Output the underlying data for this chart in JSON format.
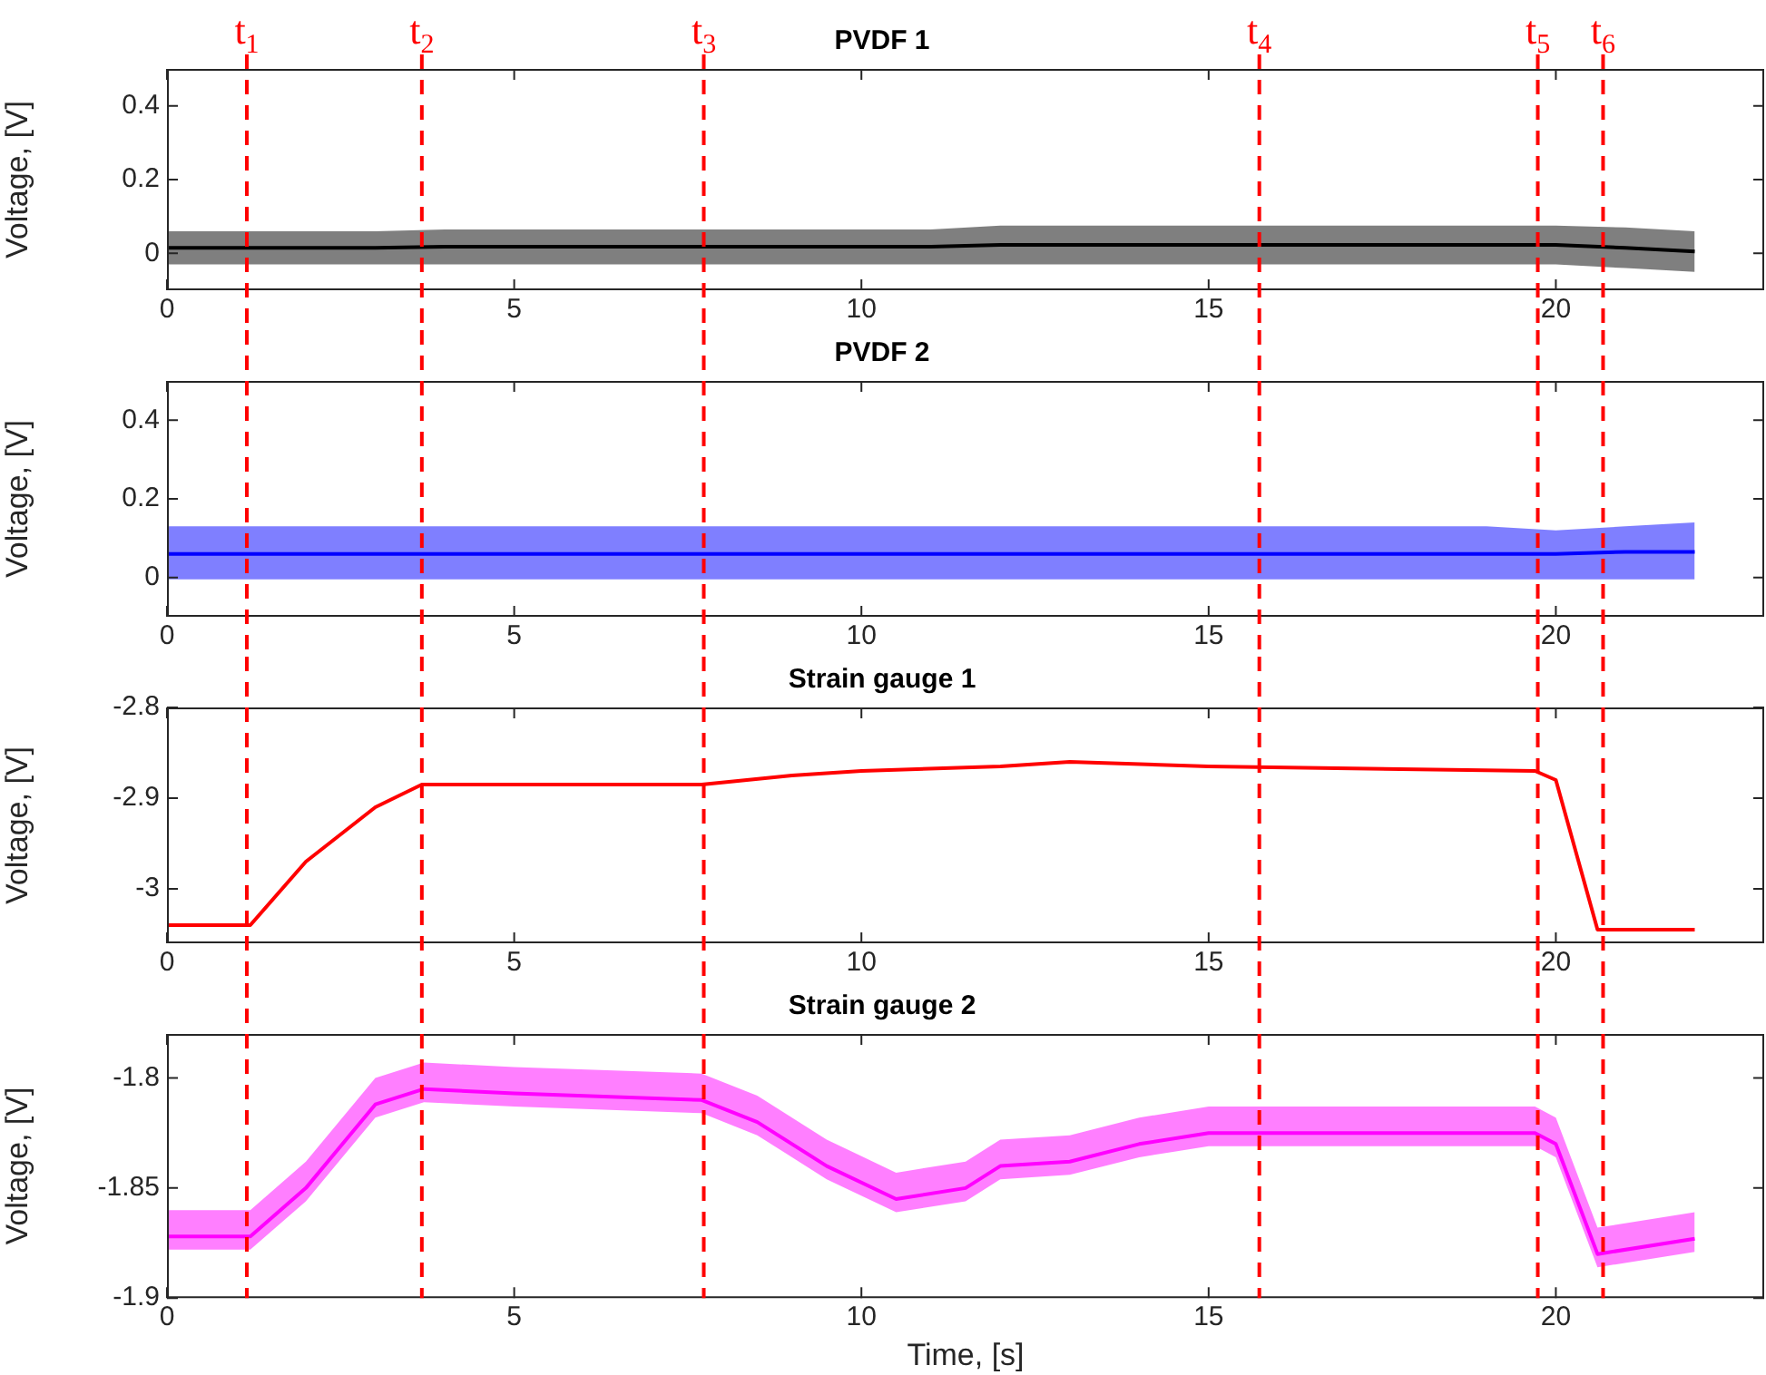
{
  "chart_data": [
    {
      "type": "line",
      "title": "PVDF 1",
      "ylabel": "Voltage, [V]",
      "xlim": [
        0,
        23
      ],
      "xticks": [
        0,
        5,
        10,
        15,
        20
      ],
      "ylim": [
        -0.1,
        0.5
      ],
      "yticks": [
        0,
        0.2,
        0.4
      ],
      "x": [
        0,
        1,
        2,
        3,
        4,
        5,
        6,
        7,
        8,
        9,
        10,
        11,
        12,
        13,
        14,
        15,
        16,
        17,
        18,
        19,
        20,
        21,
        22
      ],
      "series": [
        {
          "color": "#000000",
          "values": [
            0.015,
            0.015,
            0.015,
            0.015,
            0.018,
            0.018,
            0.018,
            0.018,
            0.018,
            0.018,
            0.018,
            0.018,
            0.023,
            0.023,
            0.023,
            0.023,
            0.023,
            0.023,
            0.023,
            0.023,
            0.023,
            0.015,
            0.005
          ],
          "lower": [
            -0.03,
            -0.03,
            -0.03,
            -0.03,
            -0.03,
            -0.03,
            -0.03,
            -0.03,
            -0.03,
            -0.03,
            -0.03,
            -0.03,
            -0.03,
            -0.03,
            -0.03,
            -0.03,
            -0.03,
            -0.03,
            -0.03,
            -0.03,
            -0.03,
            -0.04,
            -0.05
          ],
          "upper": [
            0.06,
            0.06,
            0.06,
            0.06,
            0.065,
            0.065,
            0.065,
            0.065,
            0.065,
            0.065,
            0.065,
            0.065,
            0.075,
            0.075,
            0.075,
            0.075,
            0.075,
            0.075,
            0.075,
            0.075,
            0.075,
            0.07,
            0.06
          ]
        }
      ],
      "ref_lines": [
        {
          "axis": "x",
          "value": 1.15,
          "label": "t$_{1}$",
          "color": "#ff0000",
          "line_style": "dashed"
        },
        {
          "axis": "x",
          "value": 3.67,
          "label": "t$_{2}$",
          "color": "#ff0000",
          "line_style": "dashed"
        },
        {
          "axis": "x",
          "value": 7.73,
          "label": "t$_{3}$",
          "color": "#ff0000",
          "line_style": "dashed"
        },
        {
          "axis": "x",
          "value": 15.73,
          "label": "t$_{4}$",
          "color": "#ff0000",
          "line_style": "dashed"
        },
        {
          "axis": "x",
          "value": 19.74,
          "label": "t$_{5}$",
          "color": "#ff0000",
          "line_style": "dashed"
        },
        {
          "axis": "x",
          "value": 20.68,
          "label": "t$_{6}$",
          "color": "#ff0000",
          "line_style": "dashed"
        }
      ]
    },
    {
      "type": "line",
      "title": "PVDF 2",
      "ylabel": "Voltage, [V]",
      "xlim": [
        0,
        23
      ],
      "xticks": [
        0,
        5,
        10,
        15,
        20
      ],
      "ylim": [
        -0.1,
        0.5
      ],
      "yticks": [
        0,
        0.2,
        0.4
      ],
      "x": [
        0,
        1,
        2,
        3,
        4,
        5,
        6,
        7,
        8,
        9,
        10,
        11,
        12,
        13,
        14,
        15,
        16,
        17,
        18,
        19,
        20,
        21,
        22
      ],
      "series": [
        {
          "color": "#0000ff",
          "values": [
            0.06,
            0.06,
            0.06,
            0.06,
            0.06,
            0.06,
            0.06,
            0.06,
            0.06,
            0.06,
            0.06,
            0.06,
            0.06,
            0.06,
            0.06,
            0.06,
            0.06,
            0.06,
            0.06,
            0.06,
            0.06,
            0.065,
            0.065
          ],
          "lower": [
            -0.005,
            -0.005,
            -0.005,
            -0.005,
            -0.005,
            -0.005,
            -0.005,
            -0.005,
            -0.005,
            -0.005,
            -0.005,
            -0.005,
            -0.005,
            -0.005,
            -0.005,
            -0.005,
            -0.005,
            -0.005,
            -0.005,
            -0.005,
            -0.005,
            -0.005,
            -0.005
          ],
          "upper": [
            0.13,
            0.13,
            0.13,
            0.13,
            0.13,
            0.13,
            0.13,
            0.13,
            0.13,
            0.13,
            0.13,
            0.13,
            0.13,
            0.13,
            0.13,
            0.13,
            0.13,
            0.13,
            0.13,
            0.13,
            0.12,
            0.13,
            0.14
          ]
        }
      ],
      "ref_lines": [
        {
          "axis": "x",
          "value": 1.15,
          "color": "#ff0000",
          "line_style": "dashed"
        },
        {
          "axis": "x",
          "value": 3.67,
          "color": "#ff0000",
          "line_style": "dashed"
        },
        {
          "axis": "x",
          "value": 7.73,
          "color": "#ff0000",
          "line_style": "dashed"
        },
        {
          "axis": "x",
          "value": 15.73,
          "color": "#ff0000",
          "line_style": "dashed"
        },
        {
          "axis": "x",
          "value": 19.74,
          "color": "#ff0000",
          "line_style": "dashed"
        },
        {
          "axis": "x",
          "value": 20.68,
          "color": "#ff0000",
          "line_style": "dashed"
        }
      ]
    },
    {
      "type": "line",
      "title": "Strain gauge 1",
      "ylabel": "Voltage, [V]",
      "xlim": [
        0,
        23
      ],
      "xticks": [
        0,
        5,
        10,
        15,
        20
      ],
      "ylim": [
        -3.06,
        -2.8
      ],
      "yticks": [
        -3,
        -2.9,
        -2.8
      ],
      "x": [
        0,
        1.2,
        2,
        3,
        3.67,
        5,
        7.7,
        9,
        10,
        12,
        13,
        15,
        19.7,
        20,
        20.6,
        22
      ],
      "series": [
        {
          "color": "#ff0000",
          "values": [
            -3.04,
            -3.04,
            -2.97,
            -2.91,
            -2.885,
            -2.885,
            -2.885,
            -2.875,
            -2.87,
            -2.865,
            -2.86,
            -2.865,
            -2.87,
            -2.88,
            -3.045,
            -3.045
          ]
        }
      ],
      "ref_lines": [
        {
          "axis": "x",
          "value": 1.15,
          "color": "#ff0000",
          "line_style": "dashed"
        },
        {
          "axis": "x",
          "value": 3.67,
          "color": "#ff0000",
          "line_style": "dashed"
        },
        {
          "axis": "x",
          "value": 7.73,
          "color": "#ff0000",
          "line_style": "dashed"
        },
        {
          "axis": "x",
          "value": 15.73,
          "color": "#ff0000",
          "line_style": "dashed"
        },
        {
          "axis": "x",
          "value": 19.74,
          "color": "#ff0000",
          "line_style": "dashed"
        },
        {
          "axis": "x",
          "value": 20.68,
          "color": "#ff0000",
          "line_style": "dashed"
        }
      ]
    },
    {
      "type": "line",
      "title": "Strain gauge 2",
      "xlabel": "Time, [s]",
      "ylabel": "Voltage, [V]",
      "xlim": [
        0,
        23
      ],
      "xticks": [
        0,
        5,
        10,
        15,
        20
      ],
      "ylim": [
        -1.9,
        -1.78
      ],
      "yticks": [
        -1.9,
        -1.85,
        -1.8
      ],
      "x": [
        0,
        1.2,
        2,
        3,
        3.7,
        5,
        7.7,
        8.5,
        9.5,
        10.5,
        11.5,
        12,
        13,
        14,
        15,
        19.7,
        20,
        20.6,
        22
      ],
      "series": [
        {
          "color": "#ff00ff",
          "values": [
            -1.872,
            -1.872,
            -1.85,
            -1.812,
            -1.805,
            -1.807,
            -1.81,
            -1.82,
            -1.84,
            -1.855,
            -1.85,
            -1.84,
            -1.838,
            -1.83,
            -1.825,
            -1.825,
            -1.83,
            -1.88,
            -1.873
          ],
          "lower": [
            -1.878,
            -1.878,
            -1.856,
            -1.818,
            -1.811,
            -1.813,
            -1.816,
            -1.826,
            -1.846,
            -1.861,
            -1.856,
            -1.846,
            -1.844,
            -1.836,
            -1.831,
            -1.831,
            -1.836,
            -1.886,
            -1.879
          ],
          "upper": [
            -1.86,
            -1.86,
            -1.838,
            -1.8,
            -1.793,
            -1.795,
            -1.798,
            -1.808,
            -1.828,
            -1.843,
            -1.838,
            -1.828,
            -1.826,
            -1.818,
            -1.813,
            -1.813,
            -1.818,
            -1.868,
            -1.861
          ]
        }
      ],
      "ref_lines": [
        {
          "axis": "x",
          "value": 1.15,
          "color": "#ff0000",
          "line_style": "dashed"
        },
        {
          "axis": "x",
          "value": 3.67,
          "color": "#ff0000",
          "line_style": "dashed"
        },
        {
          "axis": "x",
          "value": 7.73,
          "color": "#ff0000",
          "line_style": "dashed"
        },
        {
          "axis": "x",
          "value": 15.73,
          "color": "#ff0000",
          "line_style": "dashed"
        },
        {
          "axis": "x",
          "value": 19.74,
          "color": "#ff0000",
          "line_style": "dashed"
        },
        {
          "axis": "x",
          "value": 20.68,
          "color": "#ff0000",
          "line_style": "dashed"
        }
      ]
    }
  ]
}
